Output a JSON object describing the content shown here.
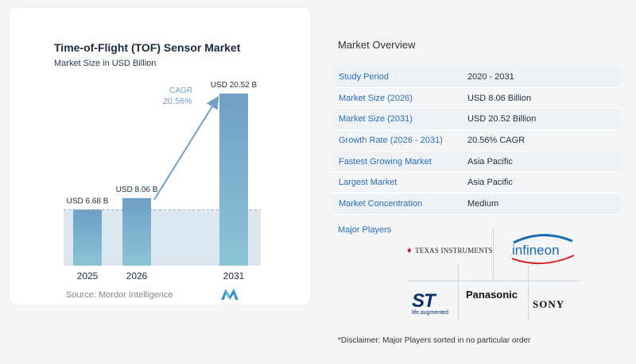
{
  "chart_data": {
    "type": "bar",
    "title": "Time-of-Flight (TOF) Sensor Market",
    "subtitle": "Market Size in USD Billion",
    "categories": [
      "2025",
      "2026",
      "2031"
    ],
    "values": [
      6.68,
      8.06,
      20.52
    ],
    "value_labels": [
      "USD 6.68 B",
      "USD 8.06 B",
      "USD 20.52 B"
    ],
    "annotation": {
      "label": "CAGR",
      "value": "20.56%"
    },
    "colors": {
      "bar_top": "#6f9fc6",
      "bar_bottom": "#8cc4d6",
      "band": "#dde7f0",
      "arrow": "#6f9fc6"
    },
    "source": "Source:  Mordor Intelligence"
  },
  "overview": {
    "title": "Market Overview",
    "rows": [
      {
        "label": "Study Period",
        "value": "2020 - 2031"
      },
      {
        "label": "Market Size (2026)",
        "value": "USD 8.06 Billion"
      },
      {
        "label": "Market Size (2031)",
        "value": "USD 20.52 Billion"
      },
      {
        "label": "Growth Rate (2026 - 2031)",
        "value": "20.56% CAGR"
      },
      {
        "label": "Fastest Growing Market",
        "value": "Asia Pacific"
      },
      {
        "label": "Largest Market",
        "value": "Asia Pacific"
      },
      {
        "label": "Market Concentration",
        "value": "Medium"
      }
    ],
    "players_title": "Major Players",
    "players": [
      "Texas Instruments",
      "Infineon",
      "ST",
      "Panasonic",
      "Sony"
    ],
    "st_tagline": "life.augmented",
    "disclaimer": "*Disclaimer: Major Players sorted in no particular order"
  },
  "accent_color": "#2a6db3"
}
